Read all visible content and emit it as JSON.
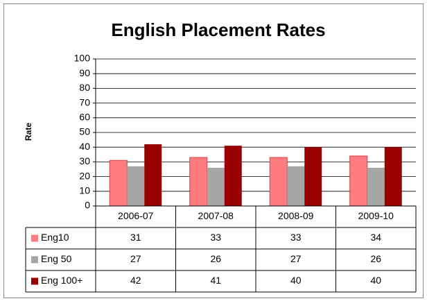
{
  "chart_data": {
    "type": "bar",
    "title": "English Placement Rates",
    "y_label": "Rate",
    "categories": [
      "2006-07",
      "2007-08",
      "2008-09",
      "2009-10"
    ],
    "series": [
      {
        "name": "Eng10",
        "color": "#ff7c80",
        "values": [
          31,
          33,
          33,
          34
        ]
      },
      {
        "name": "Eng 50",
        "color": "#a6a6a6",
        "values": [
          27,
          26,
          27,
          26
        ]
      },
      {
        "name": "Eng 100+",
        "color": "#990000",
        "values": [
          42,
          41,
          40,
          40
        ]
      }
    ],
    "ylim": [
      0,
      100
    ],
    "yticks": [
      0,
      10,
      20,
      30,
      40,
      50,
      60,
      70,
      80,
      90,
      100
    ],
    "grid": true,
    "data_table": true
  }
}
